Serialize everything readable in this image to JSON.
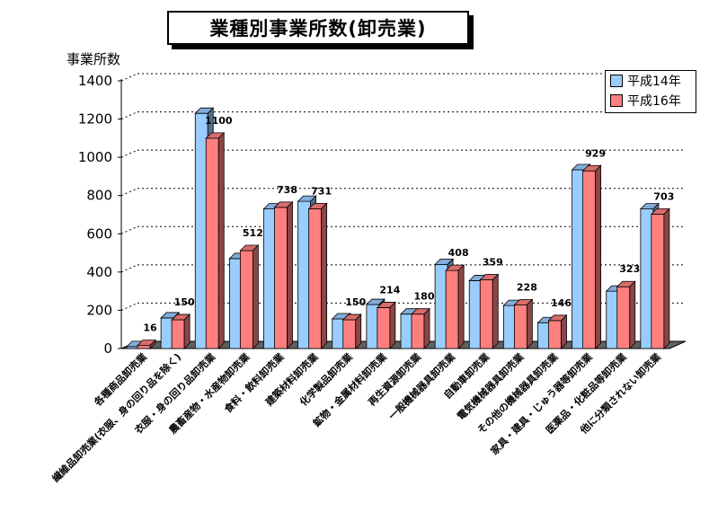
{
  "chart_data": {
    "type": "bar",
    "title": "業種別事業所数(卸売業)",
    "ylabel": "事業所数",
    "xlabel": "",
    "ylim": [
      0,
      1400
    ],
    "yticks": [
      0,
      200,
      400,
      600,
      800,
      1000,
      1200,
      1400
    ],
    "grid": true,
    "legend_position": "top-right",
    "categories": [
      "各種商品卸売業",
      "繊維品卸売業(衣服、身の回り品を除く)",
      "衣服・身の回り品卸売業",
      "農畜産物・水産物卸売業",
      "食料・飲料卸売業",
      "建築材料卸売業",
      "化学製品卸売業",
      "鉱物・金属材料卸売業",
      "再生資源卸売業",
      "一般機械器具卸売業",
      "自動車卸売業",
      "電気機械器具卸売業",
      "その他の機械器具卸売業",
      "家具・建具・じゅう器等卸売業",
      "医薬品・化粧品等卸売業",
      "他に分類されない卸売業"
    ],
    "series": [
      {
        "name": "平成14年",
        "color": "#99ccff",
        "values": [
          10,
          160,
          1230,
          470,
          730,
          770,
          155,
          230,
          180,
          440,
          355,
          225,
          135,
          935,
          300,
          730
        ]
      },
      {
        "name": "平成16年",
        "color": "#ff7f7f",
        "values": [
          16,
          150,
          1100,
          512,
          738,
          731,
          150,
          214,
          180,
          408,
          359,
          228,
          146,
          929,
          323,
          703
        ]
      }
    ],
    "data_labels": [
      "16",
      "150",
      "1100",
      "512",
      "738",
      "731",
      "150",
      "214",
      "180",
      "408",
      "359",
      "228",
      "146",
      "929",
      "323",
      "703"
    ]
  }
}
